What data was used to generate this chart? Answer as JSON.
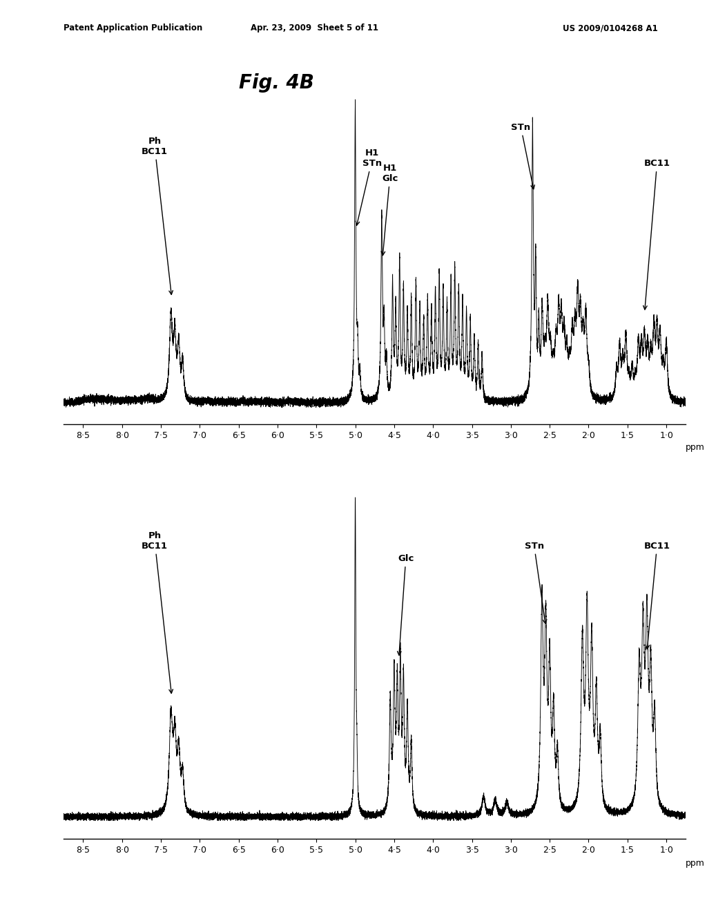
{
  "header_left": "Patent Application Publication",
  "header_center": "Apr. 23, 2009  Sheet 5 of 11",
  "header_right": "US 2009/0104268 A1",
  "fig_label": "Fig. 4B",
  "background_color": "#ffffff",
  "xlabel": "ppm",
  "xticks": [
    8.5,
    8.0,
    7.5,
    7.0,
    6.5,
    6.0,
    5.5,
    5.0,
    4.5,
    4.0,
    3.5,
    3.0,
    2.5,
    2.0,
    1.5,
    1.0
  ],
  "xtick_labels": [
    "8·5",
    "8·0",
    "7·5",
    "7·0",
    "6·5",
    "6·0",
    "5·5",
    "5·0",
    "4·5",
    "4·0",
    "3·5",
    "3·0",
    "2·5",
    "2·0",
    "1·5",
    "1·0"
  ],
  "xlim": [
    8.75,
    0.75
  ]
}
